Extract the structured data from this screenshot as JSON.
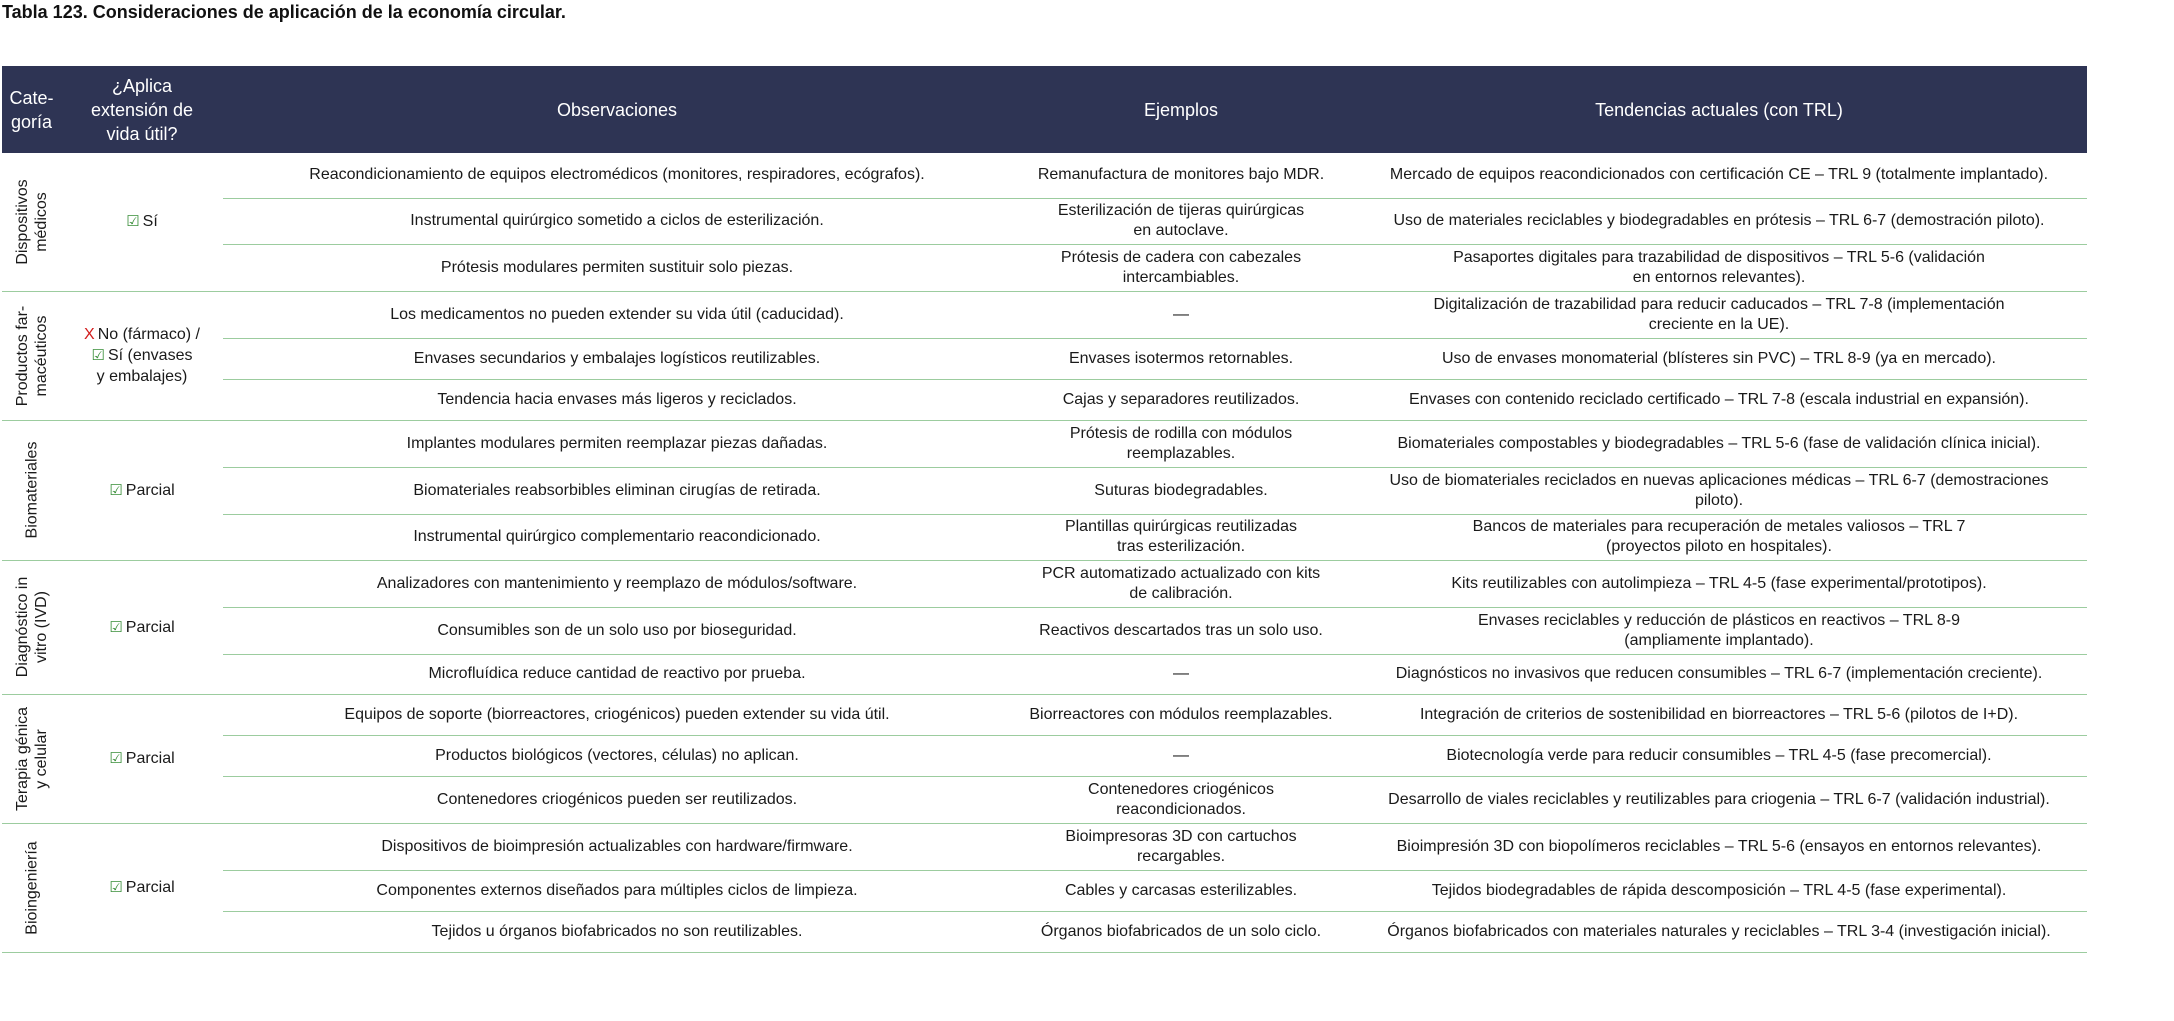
{
  "title": "Tabla 123. Consideraciones de aplicación de la economía circular.",
  "headers": {
    "categoria": [
      "Cate-",
      "goría"
    ],
    "aplica": [
      "¿Aplica",
      "extensión de",
      "vida útil?"
    ],
    "observaciones": "Observaciones",
    "ejemplos": "Ejemplos",
    "tendencias": "Tendencias actuales (con TRL)"
  },
  "icons": {
    "check": "checkbox-check-icon",
    "cross": "x-cross-icon"
  },
  "colors": {
    "header_bg": "#2e3454",
    "row_border": "#9ccc9f",
    "check": "#3a8f3a",
    "cross": "#d21c1c"
  },
  "groups": [
    {
      "categoria": [
        "Dispositivos",
        "médicos"
      ],
      "aplica": {
        "check": "☑",
        "label": "Sí"
      },
      "rows": [
        {
          "obs": "Reacondicionamiento de equipos electromédicos (monitores, respiradores, ecógrafos).",
          "ej": [
            "Remanufactura de monitores bajo MDR."
          ],
          "tend": [
            "Mercado de equipos reacondicionados con certificación CE – TRL 9 (totalmente implantado)."
          ]
        },
        {
          "obs": "Instrumental quirúrgico sometido a ciclos de esterilización.",
          "ej": [
            "Esterilización de tijeras quirúrgicas",
            "en autoclave."
          ],
          "tend": [
            "Uso de materiales reciclables y biodegradables en prótesis – TRL 6-7 (demostración piloto)."
          ]
        },
        {
          "obs": "Prótesis modulares permiten sustituir solo piezas.",
          "ej": [
            "Prótesis de cadera con cabezales",
            "intercambiables."
          ],
          "tend": [
            "Pasaportes digitales para trazabilidad de dispositivos – TRL 5-6 (validación",
            "en entornos relevantes)."
          ]
        }
      ]
    },
    {
      "categoria": [
        "Productos far-",
        "macéuticos"
      ],
      "aplica": {
        "cross": "X",
        "no_label": "No (fármaco) /",
        "check": "☑",
        "label": "Sí (envases",
        "label2": "y embalajes)"
      },
      "rows": [
        {
          "obs": "Los medicamentos no pueden extender su vida útil (caducidad).",
          "ej": [
            "—"
          ],
          "tend": [
            "Digitalización de trazabilidad para reducir caducados – TRL 7-8 (implementación",
            "creciente en la UE)."
          ]
        },
        {
          "obs": "Envases secundarios y embalajes logísticos reutilizables.",
          "ej": [
            "Envases isotermos retornables."
          ],
          "tend": [
            "Uso de envases monomaterial (blísteres sin PVC) – TRL 8-9 (ya en mercado)."
          ]
        },
        {
          "obs": "Tendencia hacia envases más ligeros y reciclados.",
          "ej": [
            "Cajas y separadores reutilizados."
          ],
          "tend": [
            "Envases con contenido reciclado certificado – TRL 7-8 (escala industrial en expansión)."
          ]
        }
      ]
    },
    {
      "categoria": [
        "Biomateriales"
      ],
      "aplica": {
        "check": "☑",
        "label": "Parcial"
      },
      "rows": [
        {
          "obs": "Implantes modulares permiten reemplazar piezas dañadas.",
          "ej": [
            "Prótesis de rodilla con módulos",
            "reemplazables."
          ],
          "tend": [
            "Biomateriales compostables y biodegradables – TRL 5-6 (fase de validación clínica inicial)."
          ]
        },
        {
          "obs": "Biomateriales reabsorbibles eliminan cirugías de retirada.",
          "ej": [
            "Suturas biodegradables."
          ],
          "tend": [
            "Uso de biomateriales reciclados en nuevas aplicaciones médicas – TRL 6-7 (demostraciones",
            "piloto)."
          ]
        },
        {
          "obs": "Instrumental quirúrgico complementario reacondicionado.",
          "ej": [
            "Plantillas quirúrgicas reutilizadas",
            "tras esterilización."
          ],
          "tend": [
            "Bancos de materiales para recuperación de metales valiosos – TRL 7",
            "(proyectos piloto en hospitales)."
          ]
        }
      ]
    },
    {
      "categoria": [
        "Diagnóstico in",
        "vitro (IVD)"
      ],
      "aplica": {
        "check": "☑",
        "label": "Parcial"
      },
      "rows": [
        {
          "obs": "Analizadores con mantenimiento y reemplazo de módulos/software.",
          "ej": [
            "PCR automatizado actualizado con kits",
            "de calibración."
          ],
          "tend": [
            "Kits reutilizables con autolimpieza – TRL 4-5 (fase experimental/prototipos)."
          ]
        },
        {
          "obs": "Consumibles son de un solo uso por bioseguridad.",
          "ej": [
            "Reactivos descartados tras un solo uso."
          ],
          "tend": [
            "Envases reciclables y reducción de plásticos en reactivos – TRL 8-9",
            "(ampliamente implantado)."
          ]
        },
        {
          "obs": "Microfluídica reduce cantidad de reactivo por prueba.",
          "ej": [
            "—"
          ],
          "tend": [
            "Diagnósticos no invasivos que reducen consumibles – TRL 6-7 (implementación creciente)."
          ]
        }
      ]
    },
    {
      "categoria": [
        "Terapia génica",
        "y celular"
      ],
      "aplica": {
        "check": "☑",
        "label": "Parcial"
      },
      "rows": [
        {
          "obs": "Equipos de soporte (biorreactores, criogénicos) pueden extender su vida útil.",
          "ej": [
            "Biorreactores con módulos reemplazables."
          ],
          "tend": [
            "Integración de criterios de sostenibilidad en biorreactores – TRL 5-6 (pilotos de I+D)."
          ]
        },
        {
          "obs": "Productos biológicos (vectores, células) no aplican.",
          "ej": [
            "—"
          ],
          "tend": [
            "Biotecnología verde para reducir consumibles – TRL 4-5 (fase precomercial)."
          ]
        },
        {
          "obs": "Contenedores criogénicos pueden ser reutilizados.",
          "ej": [
            "Contenedores criogénicos",
            "reacondicionados."
          ],
          "tend": [
            "Desarrollo de viales reciclables y reutilizables para criogenia – TRL 6-7 (validación industrial)."
          ]
        }
      ]
    },
    {
      "categoria": [
        "Bioingeniería"
      ],
      "aplica": {
        "check": "☑",
        "label": "Parcial"
      },
      "rows": [
        {
          "obs": "Dispositivos de bioimpresión actualizables con hardware/firmware.",
          "ej": [
            "Bioimpresoras 3D con cartuchos",
            "recargables."
          ],
          "tend": [
            "Bioimpresión 3D con biopolímeros reciclables – TRL 5-6 (ensayos en entornos relevantes)."
          ]
        },
        {
          "obs": "Componentes externos diseñados para múltiples ciclos de limpieza.",
          "ej": [
            "Cables y carcasas esterilizables."
          ],
          "tend": [
            "Tejidos biodegradables de rápida descomposición – TRL 4-5 (fase experimental)."
          ]
        },
        {
          "obs": "Tejidos u órganos biofabricados no son reutilizables.",
          "ej": [
            "Órganos biofabricados de un solo ciclo."
          ],
          "tend": [
            "Órganos biofabricados con materiales naturales y reciclables – TRL 3-4 (investigación inicial)."
          ]
        }
      ]
    }
  ]
}
